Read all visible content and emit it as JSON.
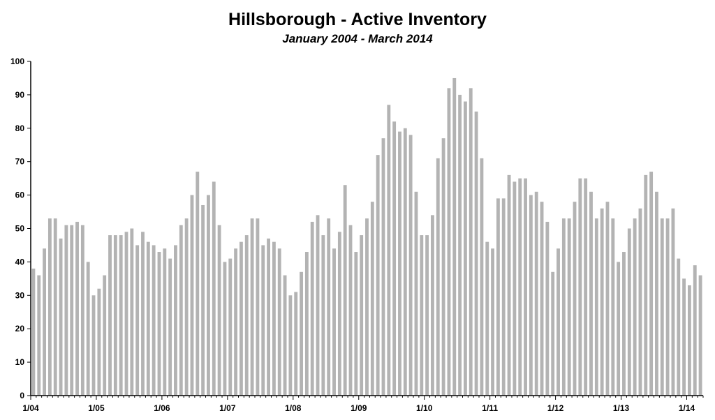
{
  "title": "Hillsborough - Active Inventory",
  "subtitle": "January 2004 - March 2014",
  "bar_color": "#b3b3b3",
  "chart_data": {
    "type": "bar",
    "title": "Hillsborough - Active Inventory",
    "subtitle": "January 2004 - March 2014",
    "xlabel": "",
    "ylabel": "",
    "ylim": [
      0,
      100
    ],
    "y_ticks": [
      0,
      10,
      20,
      30,
      40,
      50,
      60,
      70,
      80,
      90,
      100
    ],
    "x_tick_labels": [
      "1/04",
      "1/05",
      "1/06",
      "1/07",
      "1/08",
      "1/09",
      "1/10",
      "1/11",
      "1/12",
      "1/13",
      "1/14"
    ],
    "grid": false,
    "legend": "none",
    "categories": [
      "1/04",
      "2/04",
      "3/04",
      "4/04",
      "5/04",
      "6/04",
      "7/04",
      "8/04",
      "9/04",
      "10/04",
      "11/04",
      "12/04",
      "1/05",
      "2/05",
      "3/05",
      "4/05",
      "5/05",
      "6/05",
      "7/05",
      "8/05",
      "9/05",
      "10/05",
      "11/05",
      "12/05",
      "1/06",
      "2/06",
      "3/06",
      "4/06",
      "5/06",
      "6/06",
      "7/06",
      "8/06",
      "9/06",
      "10/06",
      "11/06",
      "12/06",
      "1/07",
      "2/07",
      "3/07",
      "4/07",
      "5/07",
      "6/07",
      "7/07",
      "8/07",
      "9/07",
      "10/07",
      "11/07",
      "12/07",
      "1/08",
      "2/08",
      "3/08",
      "4/08",
      "5/08",
      "6/08",
      "7/08",
      "8/08",
      "9/08",
      "10/08",
      "11/08",
      "12/08",
      "1/09",
      "2/09",
      "3/09",
      "4/09",
      "5/09",
      "6/09",
      "7/09",
      "8/09",
      "9/09",
      "10/09",
      "11/09",
      "12/09",
      "1/10",
      "2/10",
      "3/10",
      "4/10",
      "5/10",
      "6/10",
      "7/10",
      "8/10",
      "9/10",
      "10/10",
      "11/10",
      "12/10",
      "1/11",
      "2/11",
      "3/11",
      "4/11",
      "5/11",
      "6/11",
      "7/11",
      "8/11",
      "9/11",
      "10/11",
      "11/11",
      "12/11",
      "1/12",
      "2/12",
      "3/12",
      "4/12",
      "5/12",
      "6/12",
      "7/12",
      "8/12",
      "9/12",
      "10/12",
      "11/12",
      "12/12",
      "1/13",
      "2/13",
      "3/13",
      "4/13",
      "5/13",
      "6/13",
      "7/13",
      "8/13",
      "9/13",
      "10/13",
      "11/13",
      "12/13",
      "1/14",
      "2/14",
      "3/14"
    ],
    "values": [
      38,
      36,
      44,
      53,
      53,
      47,
      51,
      51,
      52,
      51,
      40,
      30,
      32,
      36,
      48,
      48,
      48,
      49,
      50,
      45,
      49,
      46,
      45,
      43,
      44,
      41,
      45,
      51,
      53,
      60,
      67,
      57,
      60,
      64,
      51,
      40,
      41,
      44,
      46,
      48,
      53,
      53,
      45,
      47,
      46,
      44,
      36,
      30,
      31,
      37,
      43,
      52,
      54,
      48,
      53,
      44,
      49,
      63,
      51,
      43,
      48,
      53,
      58,
      72,
      77,
      87,
      82,
      79,
      80,
      78,
      61,
      48,
      48,
      54,
      71,
      77,
      92,
      95,
      90,
      88,
      92,
      85,
      71,
      46,
      44,
      59,
      59,
      66,
      64,
      65,
      65,
      60,
      61,
      58,
      52,
      37,
      44,
      53,
      53,
      58,
      65,
      65,
      61,
      53,
      56,
      58,
      53,
      40,
      43,
      50,
      53,
      56,
      66,
      67,
      61,
      53,
      53,
      56,
      41,
      35,
      33,
      39,
      36
    ]
  }
}
